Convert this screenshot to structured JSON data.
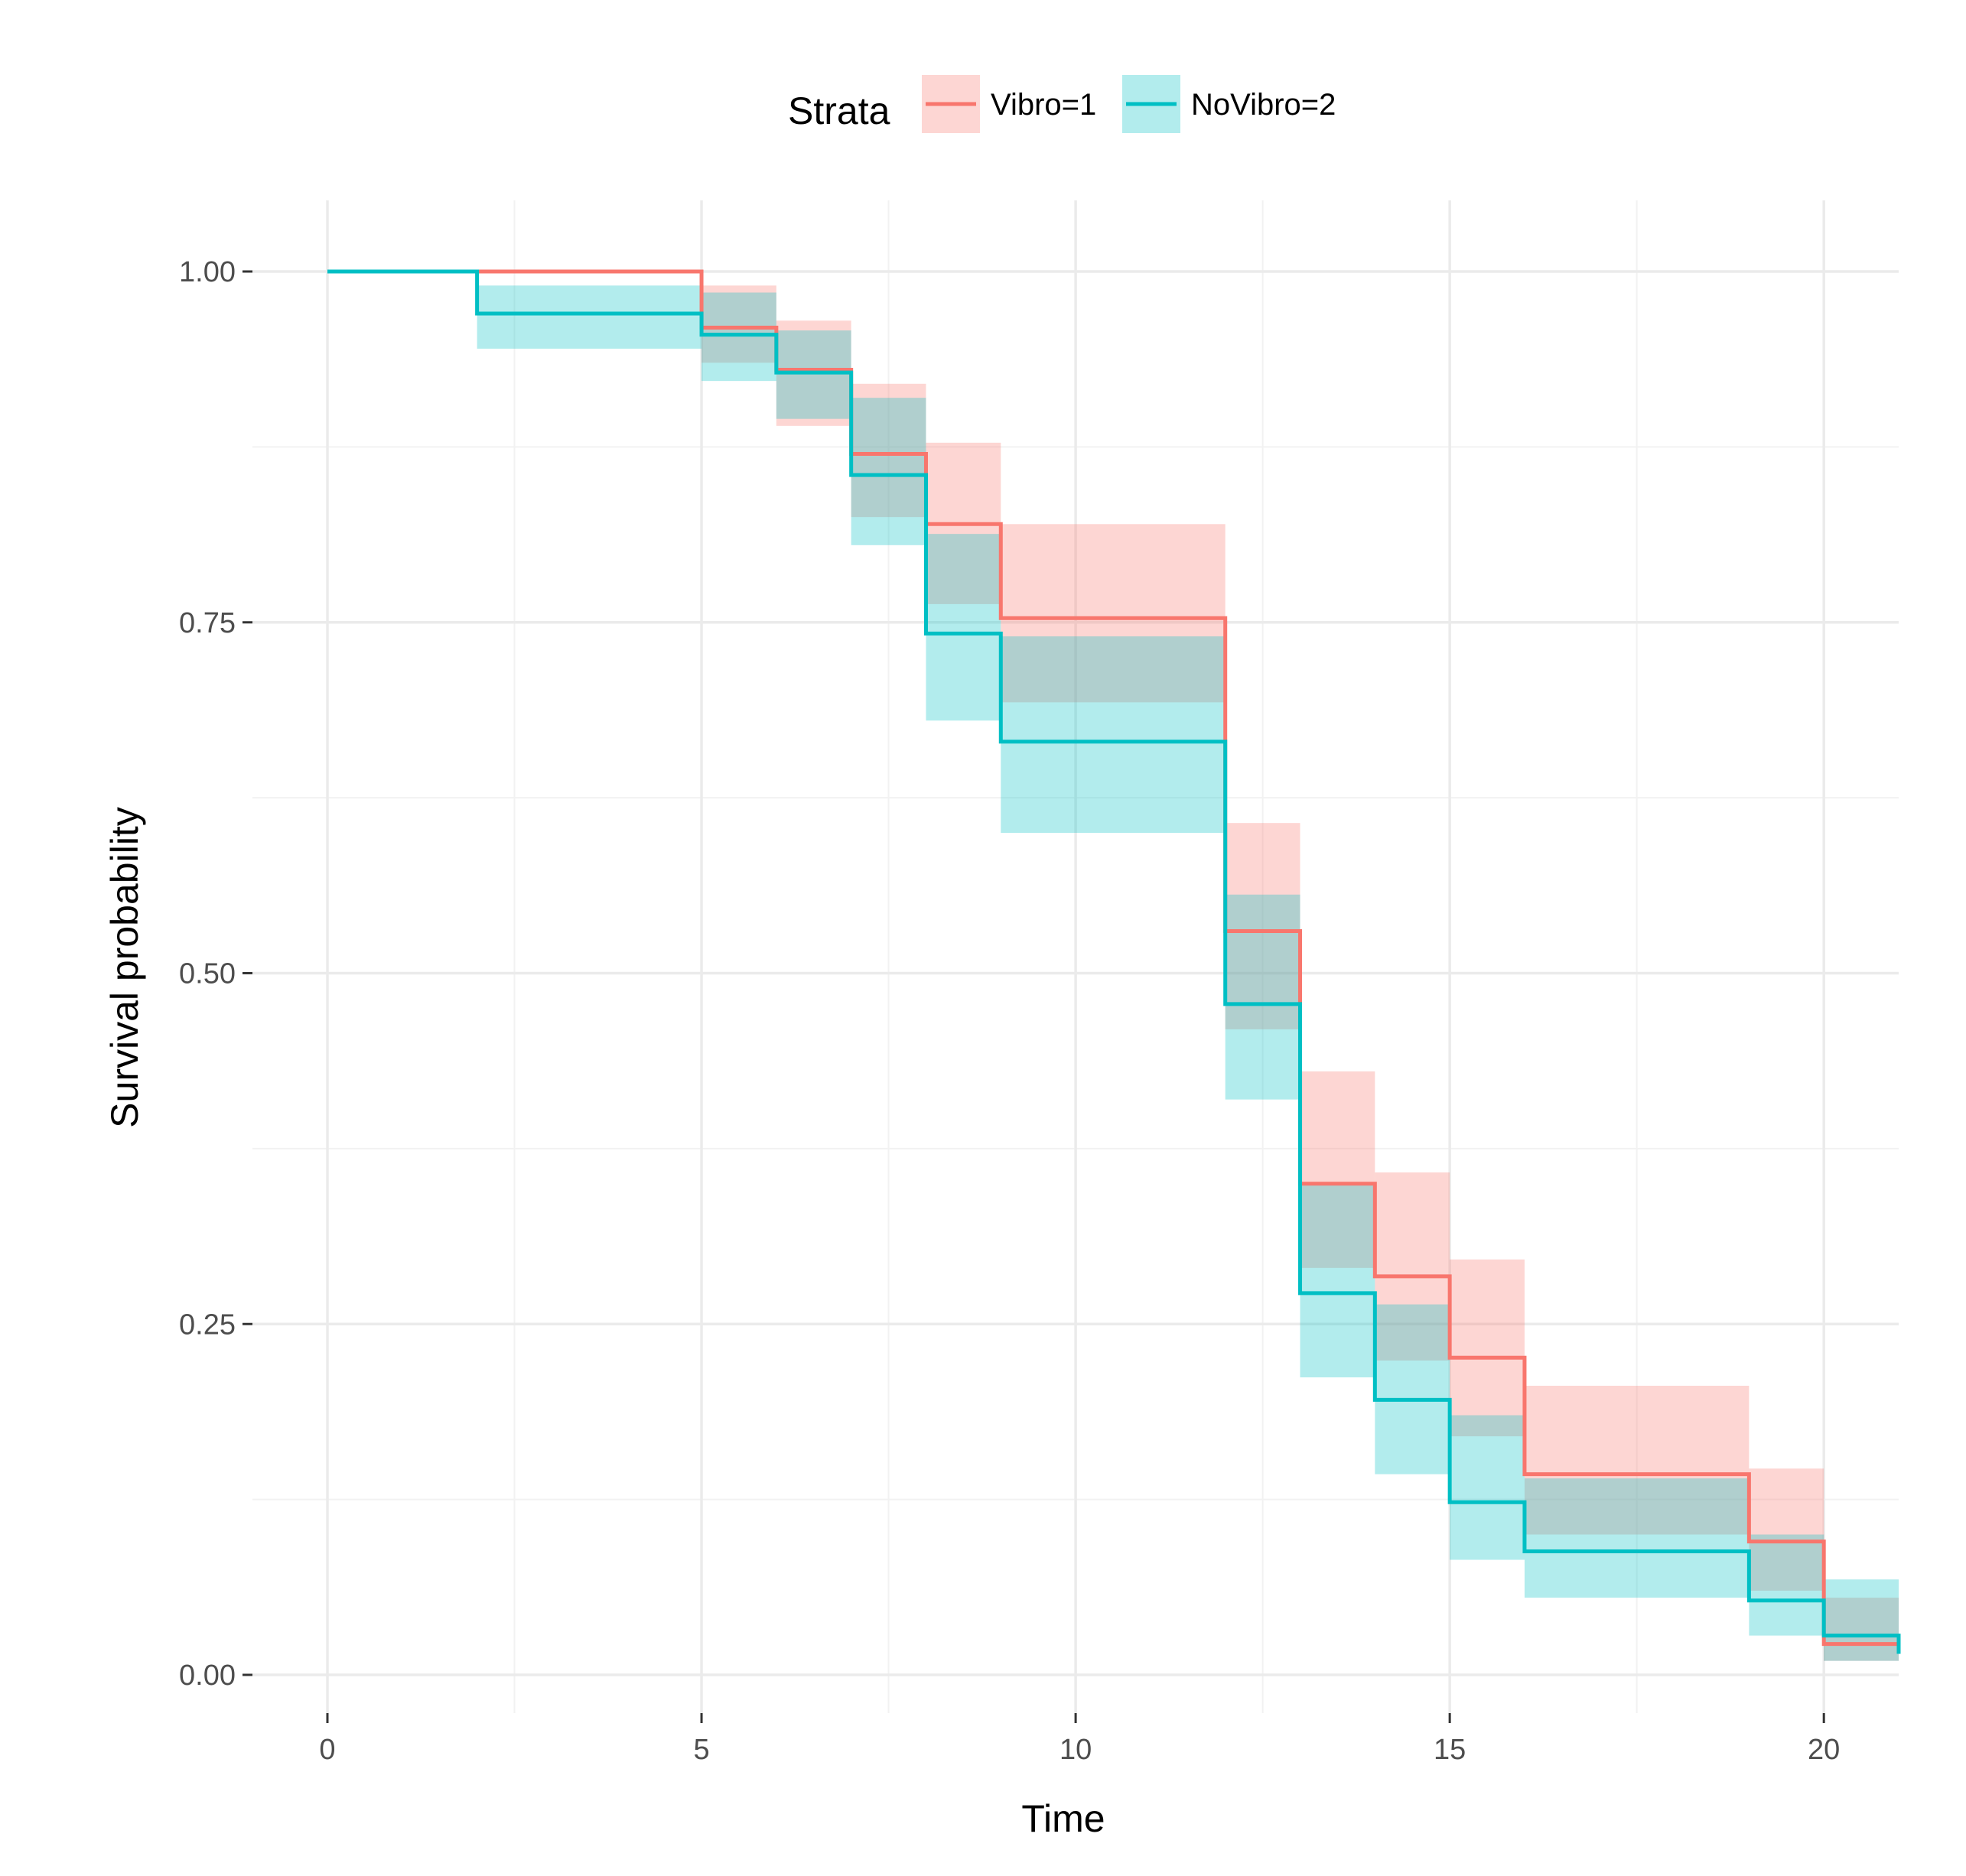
{
  "chart_data": {
    "type": "line",
    "subtype": "kaplan-meier step",
    "title": "",
    "xlabel": "Time",
    "ylabel": "Survival probability",
    "xlim": [
      0,
      21
    ],
    "ylim": [
      0,
      1
    ],
    "x_ticks": [
      0,
      5,
      10,
      15,
      20
    ],
    "x_tick_labels": [
      "0",
      "5",
      "10",
      "15",
      "20"
    ],
    "x_minor_ticks": [
      2.5,
      7.5,
      12.5,
      17.5
    ],
    "y_ticks": [
      0,
      0.25,
      0.5,
      0.75,
      1
    ],
    "y_tick_labels": [
      "0.00",
      "0.25",
      "0.50",
      "0.75",
      "1.00"
    ],
    "y_minor_ticks": [
      0.125,
      0.375,
      0.625,
      0.875
    ],
    "grid": true,
    "legend": {
      "title": "Strata",
      "position": "top"
    },
    "series": [
      {
        "name": "Vibro=1",
        "color": "#F8766D",
        "steps": [
          {
            "x": 0,
            "y": 1.0,
            "lower": 1.0,
            "upper": 1.0
          },
          {
            "x": 2,
            "y": 1.0,
            "lower": 1.0,
            "upper": 1.0
          },
          {
            "x": 5,
            "y": 0.96,
            "lower": 0.935,
            "upper": 0.99
          },
          {
            "x": 6,
            "y": 0.93,
            "lower": 0.89,
            "upper": 0.965
          },
          {
            "x": 7,
            "y": 0.87,
            "lower": 0.825,
            "upper": 0.92
          },
          {
            "x": 8,
            "y": 0.82,
            "lower": 0.763,
            "upper": 0.878
          },
          {
            "x": 9,
            "y": 0.753,
            "lower": 0.693,
            "upper": 0.82
          },
          {
            "x": 12,
            "y": 0.53,
            "lower": 0.46,
            "upper": 0.607
          },
          {
            "x": 13,
            "y": 0.35,
            "lower": 0.29,
            "upper": 0.43
          },
          {
            "x": 14,
            "y": 0.284,
            "lower": 0.224,
            "upper": 0.358
          },
          {
            "x": 15,
            "y": 0.226,
            "lower": 0.17,
            "upper": 0.296
          },
          {
            "x": 16,
            "y": 0.143,
            "lower": 0.1,
            "upper": 0.206
          },
          {
            "x": 19,
            "y": 0.095,
            "lower": 0.06,
            "upper": 0.147
          },
          {
            "x": 20,
            "y": 0.022,
            "lower": 0.01,
            "upper": 0.055
          }
        ],
        "end_x": 21,
        "end_y": 0.015
      },
      {
        "name": "NoVibro=2",
        "color": "#00BFC4",
        "steps": [
          {
            "x": 0,
            "y": 1.0,
            "lower": 1.0,
            "upper": 1.0
          },
          {
            "x": 2,
            "y": 0.97,
            "lower": 0.945,
            "upper": 0.99
          },
          {
            "x": 5,
            "y": 0.955,
            "lower": 0.922,
            "upper": 0.985
          },
          {
            "x": 6,
            "y": 0.928,
            "lower": 0.895,
            "upper": 0.958
          },
          {
            "x": 7,
            "y": 0.855,
            "lower": 0.805,
            "upper": 0.91
          },
          {
            "x": 8,
            "y": 0.742,
            "lower": 0.68,
            "upper": 0.813
          },
          {
            "x": 9,
            "y": 0.665,
            "lower": 0.6,
            "upper": 0.74
          },
          {
            "x": 12,
            "y": 0.478,
            "lower": 0.41,
            "upper": 0.556
          },
          {
            "x": 13,
            "y": 0.272,
            "lower": 0.212,
            "upper": 0.35
          },
          {
            "x": 14,
            "y": 0.196,
            "lower": 0.143,
            "upper": 0.264
          },
          {
            "x": 15,
            "y": 0.123,
            "lower": 0.082,
            "upper": 0.185
          },
          {
            "x": 16,
            "y": 0.088,
            "lower": 0.055,
            "upper": 0.14
          },
          {
            "x": 19,
            "y": 0.053,
            "lower": 0.028,
            "upper": 0.1
          },
          {
            "x": 20,
            "y": 0.028,
            "lower": 0.01,
            "upper": 0.068
          }
        ],
        "end_x": 21,
        "end_y": 0.015
      }
    ]
  }
}
